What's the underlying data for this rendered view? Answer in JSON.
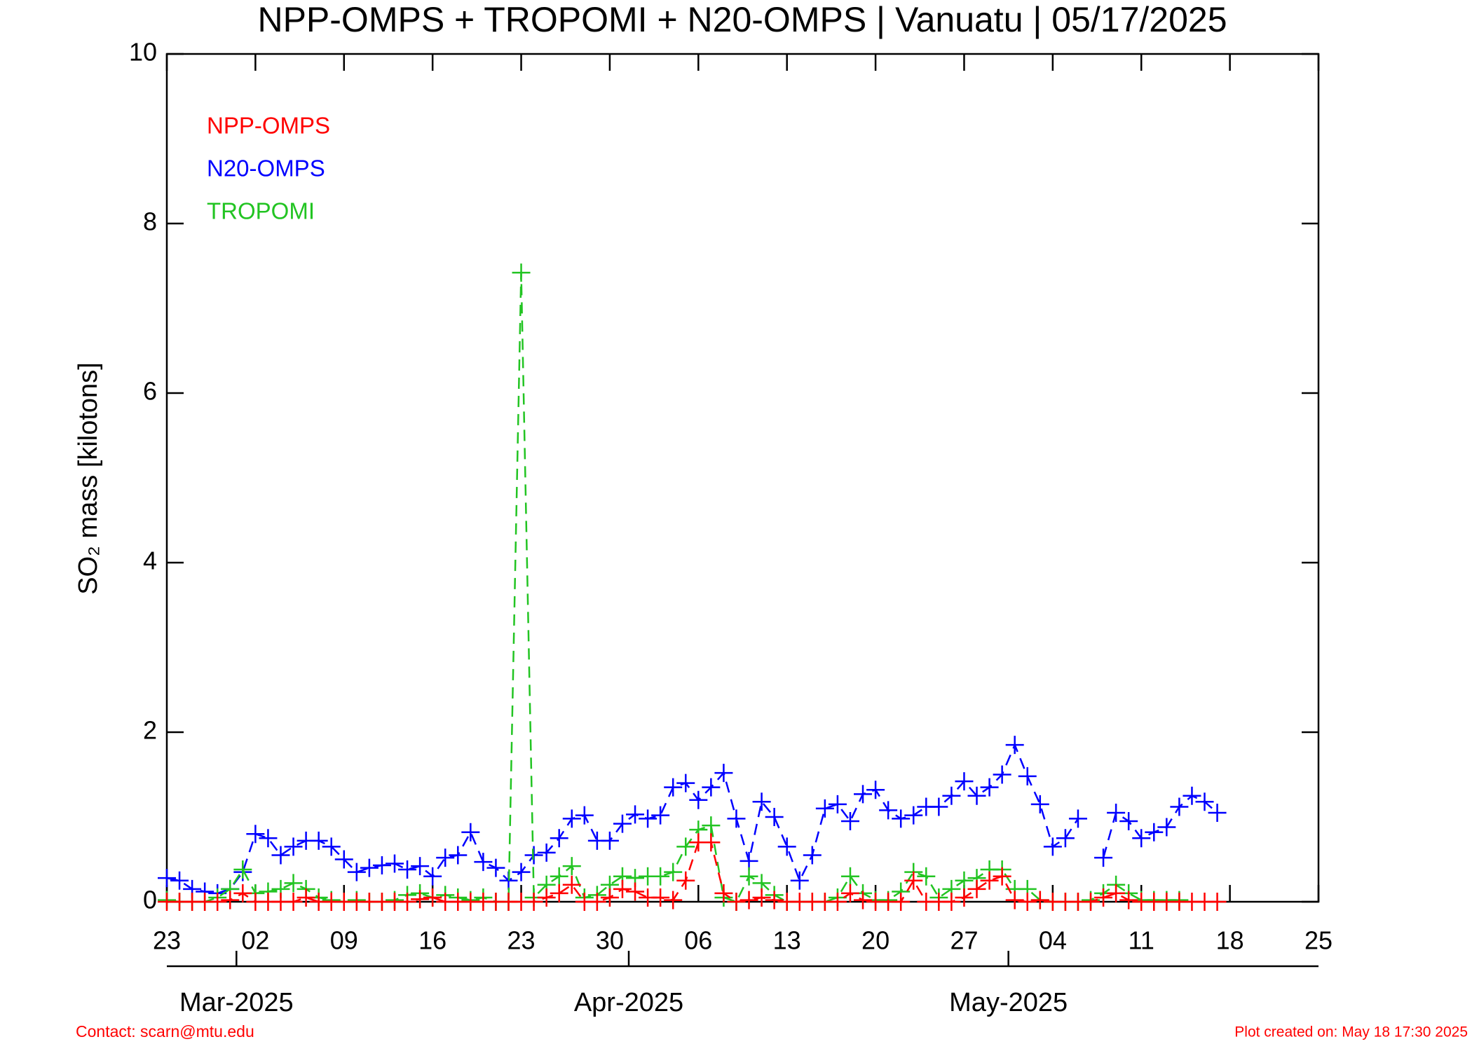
{
  "chart_data": {
    "type": "line",
    "title": "NPP-OMPS + TROPOMI + N20-OMPS | Vanuatu | 05/17/2025",
    "y_label": "SO₂ mass [kilotons]",
    "contact": "Contact: scarn@mtu.edu",
    "created": "Plot created on: May 18 17:30 2025",
    "x": [
      0,
      1,
      2,
      3,
      4,
      5,
      6,
      7,
      8,
      9,
      10,
      11,
      12,
      13,
      14,
      15,
      16,
      17,
      18,
      19,
      20,
      21,
      22,
      23,
      24,
      25,
      26,
      27,
      28,
      29,
      30,
      31,
      32,
      33,
      34,
      35,
      36,
      37,
      38,
      39,
      40,
      41,
      42,
      43,
      44,
      45,
      46,
      47,
      48,
      49,
      50,
      51,
      52,
      53,
      54,
      55,
      56,
      57,
      58,
      59,
      60,
      61,
      62,
      63,
      64,
      65,
      66,
      67,
      68,
      69,
      70,
      71,
      72,
      73,
      74,
      75,
      76,
      77,
      78,
      79,
      80,
      81,
      82,
      83
    ],
    "series": [
      {
        "name": "NPP-OMPS",
        "color": "#ff0000",
        "values": [
          0,
          0,
          0,
          0,
          0,
          0.02,
          0.1,
          0,
          0,
          0,
          0,
          0.05,
          0,
          0,
          0,
          0,
          0,
          0,
          0,
          0,
          0.03,
          0.05,
          0,
          0,
          0,
          0,
          0,
          0,
          0,
          0,
          0.05,
          0.1,
          0.2,
          0,
          0,
          0.05,
          0.15,
          0.12,
          0.05,
          0.05,
          0.02,
          0.25,
          0.7,
          0.7,
          0.1,
          0,
          0.02,
          0.05,
          0.02,
          0,
          0,
          0,
          0,
          0,
          0.1,
          0.02,
          0,
          0,
          0,
          0.25,
          0,
          0,
          0,
          0.05,
          0.15,
          0.25,
          0.3,
          0.02,
          0,
          0.02,
          0,
          0,
          0,
          0,
          0.05,
          0.1,
          0.02,
          0,
          0,
          0,
          0,
          0,
          0,
          0
        ]
      },
      {
        "name": "N20-OMPS",
        "color": "#0000ff",
        "values": [
          0.28,
          0.25,
          0.15,
          0.12,
          0.1,
          0.15,
          0.35,
          0.8,
          0.75,
          0.55,
          0.65,
          0.72,
          0.72,
          0.65,
          0.5,
          0.35,
          0.4,
          0.43,
          0.45,
          0.38,
          0.42,
          0.3,
          0.52,
          0.55,
          0.82,
          0.47,
          0.4,
          0.25,
          0.35,
          0.55,
          0.58,
          0.75,
          0.98,
          1.02,
          0.72,
          0.72,
          0.92,
          1.03,
          0.98,
          1.02,
          1.35,
          1.4,
          1.2,
          1.35,
          1.52,
          0.98,
          0.48,
          1.18,
          1.0,
          0.65,
          0.25,
          0.55,
          1.1,
          1.15,
          0.95,
          1.27,
          1.32,
          1.08,
          0.98,
          1.02,
          1.12,
          1.12,
          1.25,
          1.42,
          1.25,
          1.35,
          1.5,
          1.85,
          1.48,
          1.15,
          0.65,
          0.75,
          0.98,
          null,
          0.52,
          1.05,
          0.95,
          0.75,
          0.82,
          0.88,
          1.12,
          1.25,
          1.18,
          1.05
        ]
      },
      {
        "name": "TROPOMI",
        "color": "#22c422",
        "values": [
          0.02,
          0,
          0,
          0,
          0.05,
          0.15,
          0.38,
          0.1,
          0.12,
          0.15,
          0.22,
          0.15,
          0.05,
          0.02,
          0,
          0.02,
          0,
          0,
          0.02,
          0.08,
          0.1,
          0.05,
          0.08,
          0.05,
          0.02,
          0.05,
          0,
          0,
          7.42,
          0.05,
          0.2,
          0.3,
          0.42,
          0.05,
          0.08,
          0.2,
          0.3,
          0.28,
          0.3,
          0.3,
          0.35,
          0.65,
          0.85,
          0.9,
          0.05,
          0,
          0.3,
          0.22,
          0.08,
          0,
          0,
          0,
          0,
          0.05,
          0.3,
          0.1,
          0.02,
          0.02,
          0.12,
          0.35,
          0.3,
          0.05,
          0.15,
          0.25,
          0.28,
          0.38,
          0.38,
          0.15,
          0.15,
          0.02,
          0,
          0,
          0,
          0.02,
          0.1,
          0.2,
          0.1,
          0.02,
          0.02,
          0.02,
          0.02,
          null,
          null,
          null
        ]
      }
    ],
    "xlim": [
      0,
      91
    ],
    "xticks": [
      {
        "value": 0,
        "label": "23"
      },
      {
        "value": 7,
        "label": "02"
      },
      {
        "value": 14,
        "label": "09"
      },
      {
        "value": 21,
        "label": "16"
      },
      {
        "value": 28,
        "label": "23"
      },
      {
        "value": 35,
        "label": "30"
      },
      {
        "value": 42,
        "label": "06"
      },
      {
        "value": 49,
        "label": "13"
      },
      {
        "value": 56,
        "label": "20"
      },
      {
        "value": 63,
        "label": "27"
      },
      {
        "value": 70,
        "label": "04"
      },
      {
        "value": 77,
        "label": "11"
      },
      {
        "value": 84,
        "label": "18"
      },
      {
        "value": 91,
        "label": "25"
      }
    ],
    "month_ticks": [
      {
        "value": 5.5,
        "label": "Mar-2025"
      },
      {
        "value": 36.5,
        "label": "Apr-2025"
      },
      {
        "value": 66.5,
        "label": "May-2025"
      }
    ],
    "ylim": [
      0,
      10
    ],
    "yticks": [
      0,
      2,
      4,
      6,
      8,
      10
    ]
  }
}
